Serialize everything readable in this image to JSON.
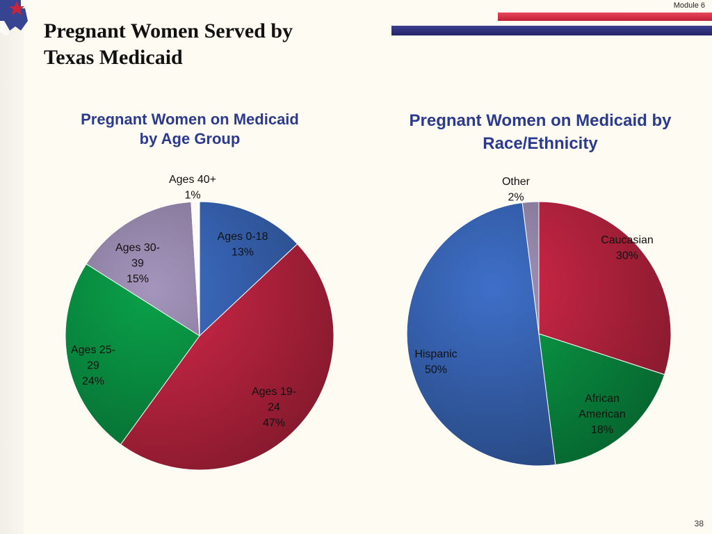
{
  "slide": {
    "title_line1": "Pregnant Women Served by",
    "title_line2": "Texas Medicaid",
    "module": "Module 6",
    "page_number": "38"
  },
  "colors": {
    "accent_red": "#c8243a",
    "accent_navy": "#2a2b72",
    "title_blue": "#2b3a8c"
  },
  "chart_data": [
    {
      "type": "pie",
      "title": "Pregnant Women on Medicaid by Age Group",
      "slices": [
        {
          "label_lines": [
            "Ages 0-18",
            "13%"
          ],
          "value": 13,
          "color": "#3e6fc8"
        },
        {
          "label_lines": [
            "Ages 19-",
            "24",
            "47%"
          ],
          "value": 47,
          "color": "#d42848"
        },
        {
          "label_lines": [
            "Ages 25-",
            "29",
            "24%"
          ],
          "value": 24,
          "color": "#0aa24a"
        },
        {
          "label_lines": [
            "Ages 30-",
            "39",
            "15%"
          ],
          "value": 15,
          "color": "#a595bd"
        },
        {
          "label_lines": [
            "Ages 40+",
            "1%"
          ],
          "value": 1,
          "color": "#ffffff"
        }
      ]
    },
    {
      "type": "pie",
      "title": "Pregnant Women on Medicaid by Race/Ethnicity",
      "slices": [
        {
          "label_lines": [
            "Caucasian",
            "30%"
          ],
          "value": 30,
          "color": "#d42848"
        },
        {
          "label_lines": [
            "African",
            "American",
            "18%"
          ],
          "value": 18,
          "color": "#0aa24a"
        },
        {
          "label_lines": [
            "Hispanic",
            "50%"
          ],
          "value": 50,
          "color": "#3e6fc8"
        },
        {
          "label_lines": [
            "Other",
            "2%"
          ],
          "value": 2,
          "color": "#a595bd"
        }
      ]
    }
  ]
}
